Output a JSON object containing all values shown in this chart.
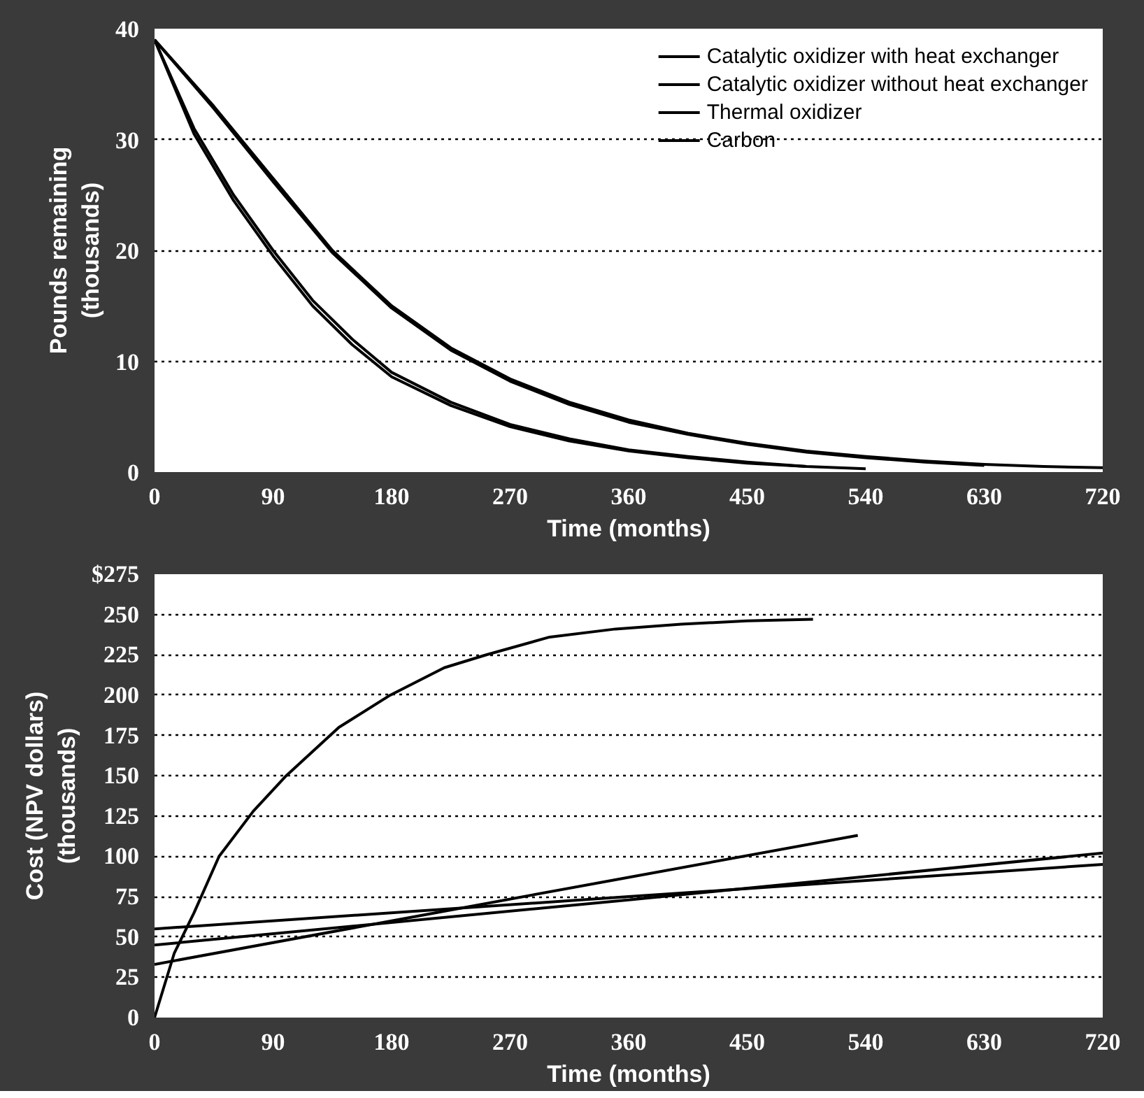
{
  "chart_data": [
    {
      "type": "line",
      "xlabel": "Time (months)",
      "ylabel": "Pounds remaining\n(thousands)",
      "xlim": [
        0,
        720
      ],
      "ylim": [
        0,
        40
      ],
      "xticks": [
        0,
        90,
        180,
        270,
        360,
        450,
        540,
        630,
        720
      ],
      "yticks": [
        0,
        10,
        20,
        30,
        40
      ],
      "grid": "y",
      "legend": "top right",
      "marker": "none",
      "line_style": "solid",
      "series": [
        {
          "name": "Catalytic oxidizer with heat exchanger",
          "color": "#000000",
          "x": [
            0,
            45,
            90,
            135,
            180,
            225,
            270,
            315,
            360,
            405,
            450,
            495,
            540,
            585,
            630,
            675,
            720
          ],
          "values": [
            39,
            33,
            26.5,
            20,
            15,
            11.2,
            8.4,
            6.3,
            4.7,
            3.5,
            2.6,
            1.9,
            1.4,
            1.0,
            0.7,
            0.5,
            0.4
          ]
        },
        {
          "name": "Catalytic oxidizer without heat exchanger",
          "color": "#000000",
          "x": [
            0,
            45,
            90,
            135,
            180,
            225,
            270,
            315,
            360,
            405,
            450,
            495,
            540,
            585,
            630
          ],
          "values": [
            39,
            32.8,
            26.2,
            19.8,
            14.8,
            11,
            8.2,
            6.1,
            4.5,
            3.4,
            2.5,
            1.8,
            1.3,
            0.9,
            0.6
          ]
        },
        {
          "name": "Thermal oxidizer",
          "color": "#000000",
          "x": [
            0,
            30,
            60,
            90,
            120,
            150,
            180,
            225,
            270,
            315,
            360,
            405,
            450,
            495,
            540
          ],
          "values": [
            39,
            31,
            25,
            20,
            15.5,
            12,
            9,
            6.3,
            4.3,
            3,
            2,
            1.4,
            0.9,
            0.5,
            0.3
          ]
        },
        {
          "name": "Carbon",
          "color": "#000000",
          "x": [
            0,
            30,
            60,
            90,
            120,
            150,
            180,
            225,
            270,
            315,
            360,
            405,
            450,
            495
          ],
          "values": [
            39,
            30.5,
            24.5,
            19.5,
            15,
            11.5,
            8.6,
            6,
            4.1,
            2.8,
            1.9,
            1.3,
            0.8,
            0.5
          ]
        }
      ]
    },
    {
      "type": "line",
      "xlabel": "Time (months)",
      "ylabel": "Cost (NPV dollars)\n(thousands)",
      "xlim": [
        0,
        720
      ],
      "ylim": [
        0,
        275
      ],
      "xticks": [
        0,
        90,
        180,
        270,
        360,
        450,
        540,
        630,
        720
      ],
      "yticks": [
        0,
        25,
        50,
        75,
        100,
        125,
        150,
        175,
        200,
        225,
        250,
        {
          "value": 275,
          "label": "$275"
        }
      ],
      "grid": "y",
      "legend": false,
      "marker": "none",
      "line_style": "solid",
      "series": [
        {
          "color": "#000000",
          "x": [
            0,
            15,
            30,
            49,
            75,
            100,
            140,
            179,
            220,
            252,
            300,
            350,
            400,
            450,
            500
          ],
          "values": [
            0,
            40,
            65,
            100,
            128,
            150,
            180,
            200,
            217,
            225,
            236,
            241,
            244,
            246,
            247
          ]
        },
        {
          "color": "#000000",
          "x": [
            0,
            180,
            360,
            534
          ],
          "values": [
            33,
            60,
            87,
            113
          ]
        },
        {
          "color": "#000000",
          "x": [
            0,
            360,
            720
          ],
          "values": [
            45,
            73,
            102
          ]
        },
        {
          "color": "#000000",
          "x": [
            0,
            360,
            720
          ],
          "values": [
            55,
            75,
            95
          ]
        }
      ]
    }
  ]
}
